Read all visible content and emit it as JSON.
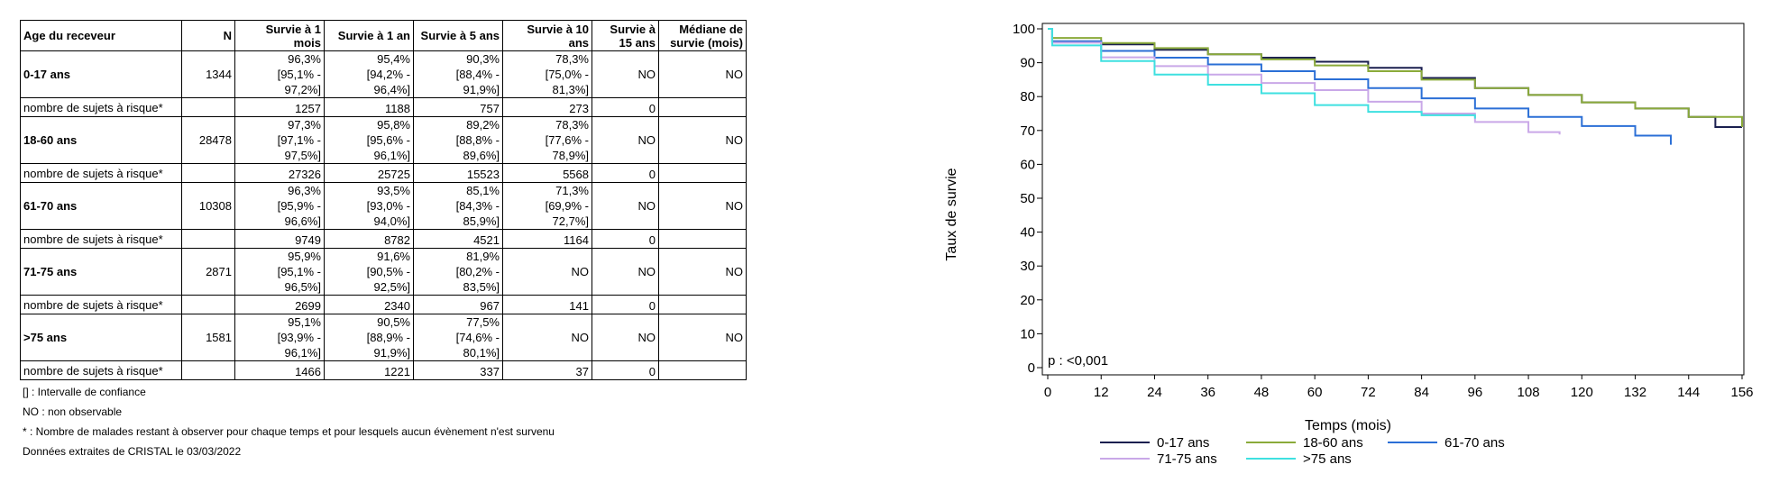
{
  "table": {
    "headers": [
      "Age du receveur",
      "N",
      "Survie à 1 mois",
      "Survie à 1 an",
      "Survie à 5 ans",
      "Survie à 10 ans",
      "Survie à 15 ans",
      "Médiane de survie (mois)"
    ],
    "groups": [
      {
        "label": "0-17 ans",
        "n": "1344",
        "survival": [
          [
            "96,3%",
            "[95,1% - 97,2%]"
          ],
          [
            "95,4%",
            "[94,2% - 96,4%]"
          ],
          [
            "90,3%",
            "[88,4% - 91,9%]"
          ],
          [
            "78,3%",
            "[75,0% - 81,3%]"
          ],
          [
            "NO",
            ""
          ]
        ],
        "median": "NO",
        "risk": [
          "1257",
          "1188",
          "757",
          "273",
          "0"
        ]
      },
      {
        "label": "18-60 ans",
        "n": "28478",
        "survival": [
          [
            "97,3%",
            "[97,1% - 97,5%]"
          ],
          [
            "95,8%",
            "[95,6% - 96,1%]"
          ],
          [
            "89,2%",
            "[88,8% - 89,6%]"
          ],
          [
            "78,3%",
            "[77,6% - 78,9%]"
          ],
          [
            "NO",
            ""
          ]
        ],
        "median": "NO",
        "risk": [
          "27326",
          "25725",
          "15523",
          "5568",
          "0"
        ]
      },
      {
        "label": "61-70 ans",
        "n": "10308",
        "survival": [
          [
            "96,3%",
            "[95,9% - 96,6%]"
          ],
          [
            "93,5%",
            "[93,0% - 94,0%]"
          ],
          [
            "85,1%",
            "[84,3% - 85,9%]"
          ],
          [
            "71,3%",
            "[69,9% - 72,7%]"
          ],
          [
            "NO",
            ""
          ]
        ],
        "median": "NO",
        "risk": [
          "9749",
          "8782",
          "4521",
          "1164",
          "0"
        ]
      },
      {
        "label": "71-75 ans",
        "n": "2871",
        "survival": [
          [
            "95,9%",
            "[95,1% - 96,5%]"
          ],
          [
            "91,6%",
            "[90,5% - 92,5%]"
          ],
          [
            "81,9%",
            "[80,2% - 83,5%]"
          ],
          [
            "NO",
            ""
          ],
          [
            "NO",
            ""
          ]
        ],
        "median": "NO",
        "risk": [
          "2699",
          "2340",
          "967",
          "141",
          "0"
        ]
      },
      {
        "label": ">75 ans",
        "n": "1581",
        "survival": [
          [
            "95,1%",
            "[93,9% - 96,1%]"
          ],
          [
            "90,5%",
            "[88,9% - 91,9%]"
          ],
          [
            "77,5%",
            "[74,6% - 80,1%]"
          ],
          [
            "NO",
            ""
          ],
          [
            "NO",
            ""
          ]
        ],
        "median": "NO",
        "risk": [
          "1466",
          "1221",
          "337",
          "37",
          "0"
        ]
      }
    ],
    "risk_label": "nombre de sujets à risque*"
  },
  "notes": [
    "[] : Intervalle de confiance",
    "NO : non observable",
    "* : Nombre de malades restant à observer pour chaque temps et pour lesquels aucun évènement n'est survenu",
    "Données extraites de CRISTAL le 03/03/2022"
  ],
  "chart_data": {
    "type": "line",
    "xlabel": "Temps (mois)",
    "ylabel": "Taux de survie",
    "xlim": [
      0,
      156
    ],
    "ylim": [
      0,
      100
    ],
    "xticks": [
      0,
      12,
      24,
      36,
      48,
      60,
      72,
      84,
      96,
      108,
      120,
      132,
      144,
      156
    ],
    "yticks": [
      0,
      10,
      20,
      30,
      40,
      50,
      60,
      70,
      80,
      90,
      100
    ],
    "ytick_suffix": "%",
    "annotation": "p : <0,001",
    "legend_placement": "bottom",
    "series": [
      {
        "name": "0-17 ans",
        "color": "#1a1f4f",
        "x": [
          0,
          1,
          12,
          24,
          36,
          48,
          60,
          72,
          84,
          96,
          108,
          120,
          132,
          144,
          150,
          156
        ],
        "y": [
          100,
          96.3,
          95.4,
          93.8,
          92.5,
          91.5,
          90.3,
          88.5,
          85.5,
          82.5,
          80.5,
          78.3,
          76.5,
          74,
          71,
          71
        ]
      },
      {
        "name": "18-60 ans",
        "color": "#8aaa3a",
        "x": [
          0,
          1,
          12,
          24,
          36,
          48,
          60,
          72,
          84,
          96,
          108,
          120,
          132,
          144,
          156
        ],
        "y": [
          100,
          97.3,
          95.8,
          94.3,
          92.5,
          91,
          89.2,
          87.5,
          85,
          82.5,
          80.5,
          78.3,
          76.5,
          74,
          71
        ]
      },
      {
        "name": "61-70 ans",
        "color": "#2b6fd6",
        "x": [
          0,
          1,
          12,
          24,
          36,
          48,
          60,
          72,
          84,
          96,
          108,
          120,
          132,
          140
        ],
        "y": [
          100,
          96.3,
          93.5,
          91.5,
          89.5,
          87.5,
          85.1,
          82.5,
          79.5,
          76.5,
          74,
          71.3,
          68.5,
          65.8
        ]
      },
      {
        "name": "71-75 ans",
        "color": "#c9a8e8",
        "x": [
          0,
          1,
          12,
          24,
          36,
          48,
          60,
          72,
          84,
          96,
          108,
          115
        ],
        "y": [
          100,
          95.9,
          91.6,
          89,
          86.5,
          84,
          81.9,
          78.5,
          75,
          72.5,
          69.5,
          68.8
        ]
      },
      {
        "name": ">75 ans",
        "color": "#3ee0e0",
        "x": [
          0,
          1,
          12,
          24,
          36,
          48,
          60,
          72,
          84,
          96
        ],
        "y": [
          100,
          95.1,
          90.5,
          86.5,
          83.5,
          81,
          77.5,
          75.5,
          74.5,
          73.5
        ]
      }
    ]
  }
}
